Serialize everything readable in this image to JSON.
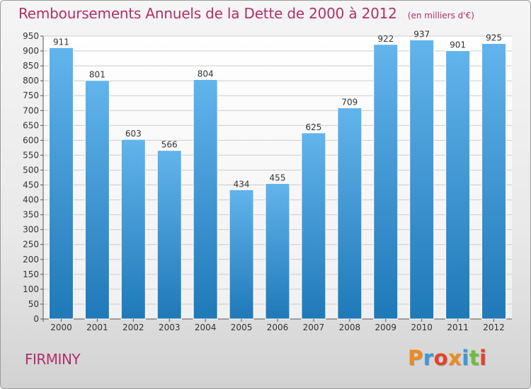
{
  "title": "Remboursements Annuels de la Dette de 2000 à 2012",
  "subtitle": "(en milliers d'€)",
  "city": "FIRMINY",
  "logo": "Proxiti",
  "colors": {
    "title": "#b0306a",
    "bar_light": "#62b4ec",
    "bar_dark": "#1f79b8",
    "grid": "#cccccc"
  },
  "chart_data": {
    "type": "bar",
    "categories": [
      "2000",
      "2001",
      "2002",
      "2003",
      "2004",
      "2005",
      "2006",
      "2007",
      "2008",
      "2009",
      "2010",
      "2011",
      "2012"
    ],
    "values": [
      911,
      801,
      603,
      566,
      804,
      434,
      455,
      625,
      709,
      922,
      937,
      901,
      925
    ],
    "ylim": [
      0,
      950
    ],
    "ytick_step": 50,
    "grid": true,
    "title": "Remboursements Annuels de la Dette de 2000 à 2012",
    "subtitle": "(en milliers d'€)"
  }
}
